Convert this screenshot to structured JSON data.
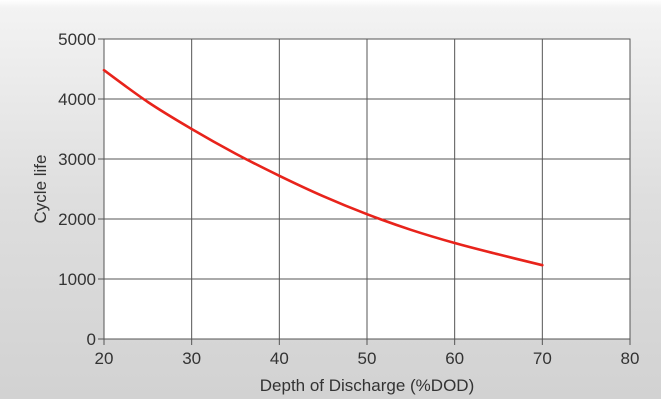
{
  "chart_data": {
    "type": "line",
    "title": "",
    "xlabel": "Depth of Discharge (%DOD)",
    "ylabel": "Cycle life",
    "xlim": [
      20,
      80
    ],
    "ylim": [
      0,
      5000
    ],
    "x_ticks": [
      20,
      30,
      40,
      50,
      60,
      70,
      80
    ],
    "y_ticks": [
      0,
      1000,
      2000,
      3000,
      4000,
      5000
    ],
    "grid": true,
    "legend": "none",
    "series": [
      {
        "color": "#e8231b",
        "x": [
          20,
          25,
          30,
          35,
          40,
          45,
          50,
          55,
          60,
          65,
          70
        ],
        "y": [
          4480,
          3950,
          3500,
          3090,
          2720,
          2380,
          2080,
          1820,
          1600,
          1410,
          1230
        ]
      }
    ]
  }
}
